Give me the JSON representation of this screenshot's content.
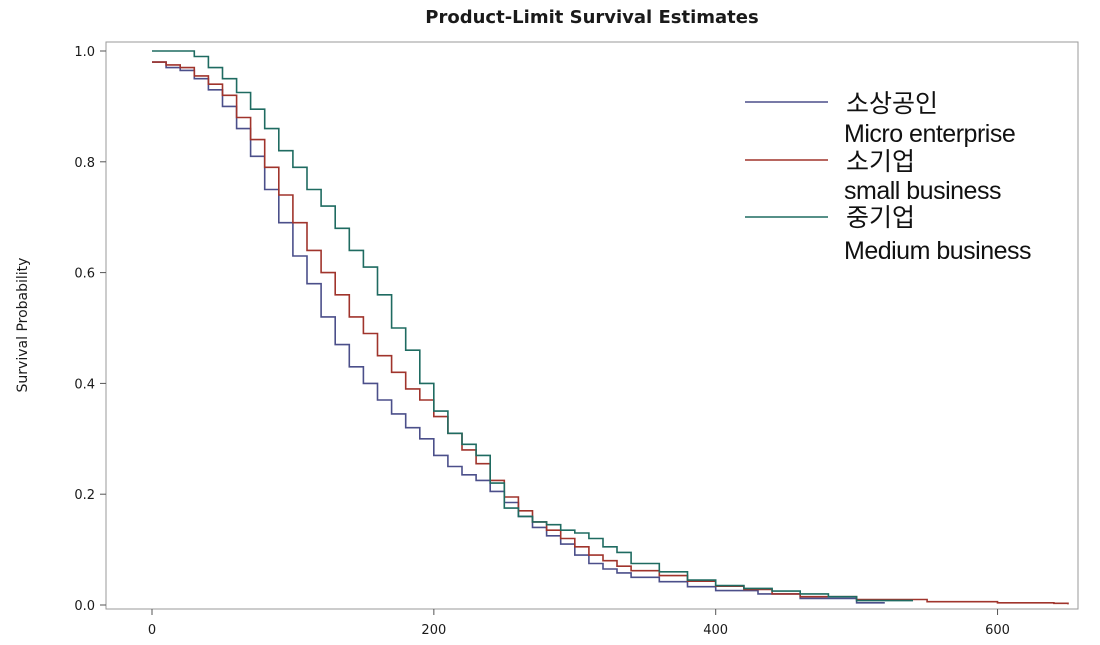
{
  "chart_data": {
    "type": "line",
    "step": true,
    "title": "Product-Limit Survival Estimates",
    "xlabel": "",
    "ylabel": "Survival Probability",
    "xlim": [
      0,
      650
    ],
    "ylim": [
      0,
      1
    ],
    "x_ticks": [
      "0",
      "200",
      "400",
      "600"
    ],
    "x_tick_values": [
      0,
      200,
      400,
      600
    ],
    "y_ticks": [
      "0.0",
      "0.2",
      "0.4",
      "0.6",
      "0.8",
      "1.0"
    ],
    "y_tick_values": [
      0,
      0.2,
      0.4,
      0.6,
      0.8,
      1.0
    ],
    "grid": false,
    "legend_position": "top-right",
    "series": [
      {
        "name": "소상공인",
        "name_en": "Micro enterprise",
        "color": "#4b4f8a",
        "points": [
          [
            0,
            0.98
          ],
          [
            10,
            0.97
          ],
          [
            20,
            0.965
          ],
          [
            30,
            0.95
          ],
          [
            40,
            0.93
          ],
          [
            50,
            0.9
          ],
          [
            60,
            0.86
          ],
          [
            70,
            0.81
          ],
          [
            80,
            0.75
          ],
          [
            90,
            0.69
          ],
          [
            100,
            0.63
          ],
          [
            110,
            0.58
          ],
          [
            120,
            0.52
          ],
          [
            130,
            0.47
          ],
          [
            140,
            0.43
          ],
          [
            150,
            0.4
          ],
          [
            160,
            0.37
          ],
          [
            170,
            0.345
          ],
          [
            180,
            0.32
          ],
          [
            190,
            0.3
          ],
          [
            200,
            0.27
          ],
          [
            210,
            0.25
          ],
          [
            220,
            0.235
          ],
          [
            230,
            0.225
          ],
          [
            240,
            0.205
          ],
          [
            250,
            0.185
          ],
          [
            260,
            0.16
          ],
          [
            270,
            0.14
          ],
          [
            280,
            0.125
          ],
          [
            290,
            0.11
          ],
          [
            300,
            0.09
          ],
          [
            310,
            0.075
          ],
          [
            320,
            0.065
          ],
          [
            330,
            0.058
          ],
          [
            340,
            0.05
          ],
          [
            360,
            0.042
          ],
          [
            380,
            0.033
          ],
          [
            400,
            0.026
          ],
          [
            430,
            0.02
          ],
          [
            460,
            0.012
          ],
          [
            500,
            0.004
          ],
          [
            520,
            0.004
          ]
        ]
      },
      {
        "name": "소기업",
        "name_en": "small business",
        "color": "#a0342c",
        "points": [
          [
            0,
            0.98
          ],
          [
            10,
            0.975
          ],
          [
            20,
            0.97
          ],
          [
            30,
            0.955
          ],
          [
            40,
            0.94
          ],
          [
            50,
            0.92
          ],
          [
            60,
            0.88
          ],
          [
            70,
            0.84
          ],
          [
            80,
            0.79
          ],
          [
            90,
            0.74
          ],
          [
            100,
            0.69
          ],
          [
            110,
            0.64
          ],
          [
            120,
            0.6
          ],
          [
            130,
            0.56
          ],
          [
            140,
            0.52
          ],
          [
            150,
            0.49
          ],
          [
            160,
            0.45
          ],
          [
            170,
            0.42
          ],
          [
            180,
            0.39
          ],
          [
            190,
            0.37
          ],
          [
            200,
            0.34
          ],
          [
            210,
            0.31
          ],
          [
            220,
            0.28
          ],
          [
            230,
            0.255
          ],
          [
            240,
            0.225
          ],
          [
            250,
            0.195
          ],
          [
            260,
            0.17
          ],
          [
            270,
            0.15
          ],
          [
            280,
            0.135
          ],
          [
            290,
            0.12
          ],
          [
            300,
            0.105
          ],
          [
            310,
            0.09
          ],
          [
            320,
            0.08
          ],
          [
            330,
            0.07
          ],
          [
            340,
            0.062
          ],
          [
            360,
            0.053
          ],
          [
            380,
            0.043
          ],
          [
            400,
            0.034
          ],
          [
            420,
            0.028
          ],
          [
            440,
            0.02
          ],
          [
            460,
            0.015
          ],
          [
            500,
            0.01
          ],
          [
            550,
            0.006
          ],
          [
            600,
            0.004
          ],
          [
            640,
            0.003
          ],
          [
            650,
            0.001
          ]
        ]
      },
      {
        "name": "중기업",
        "name_en": "Medium business",
        "color": "#1f6b61",
        "points": [
          [
            0,
            1.0
          ],
          [
            10,
            1.0
          ],
          [
            20,
            1.0
          ],
          [
            30,
            0.99
          ],
          [
            40,
            0.97
          ],
          [
            50,
            0.95
          ],
          [
            60,
            0.925
          ],
          [
            70,
            0.895
          ],
          [
            80,
            0.86
          ],
          [
            90,
            0.82
          ],
          [
            100,
            0.79
          ],
          [
            110,
            0.75
          ],
          [
            120,
            0.72
          ],
          [
            130,
            0.68
          ],
          [
            140,
            0.64
          ],
          [
            150,
            0.61
          ],
          [
            160,
            0.56
          ],
          [
            170,
            0.5
          ],
          [
            180,
            0.46
          ],
          [
            190,
            0.4
          ],
          [
            200,
            0.35
          ],
          [
            210,
            0.31
          ],
          [
            220,
            0.29
          ],
          [
            230,
            0.27
          ],
          [
            240,
            0.22
          ],
          [
            250,
            0.175
          ],
          [
            260,
            0.16
          ],
          [
            270,
            0.15
          ],
          [
            280,
            0.145
          ],
          [
            290,
            0.135
          ],
          [
            300,
            0.13
          ],
          [
            310,
            0.12
          ],
          [
            320,
            0.105
          ],
          [
            330,
            0.095
          ],
          [
            340,
            0.075
          ],
          [
            360,
            0.06
          ],
          [
            380,
            0.045
          ],
          [
            400,
            0.035
          ],
          [
            420,
            0.03
          ],
          [
            440,
            0.025
          ],
          [
            460,
            0.02
          ],
          [
            480,
            0.015
          ],
          [
            500,
            0.008
          ],
          [
            540,
            0.008
          ]
        ]
      }
    ]
  }
}
